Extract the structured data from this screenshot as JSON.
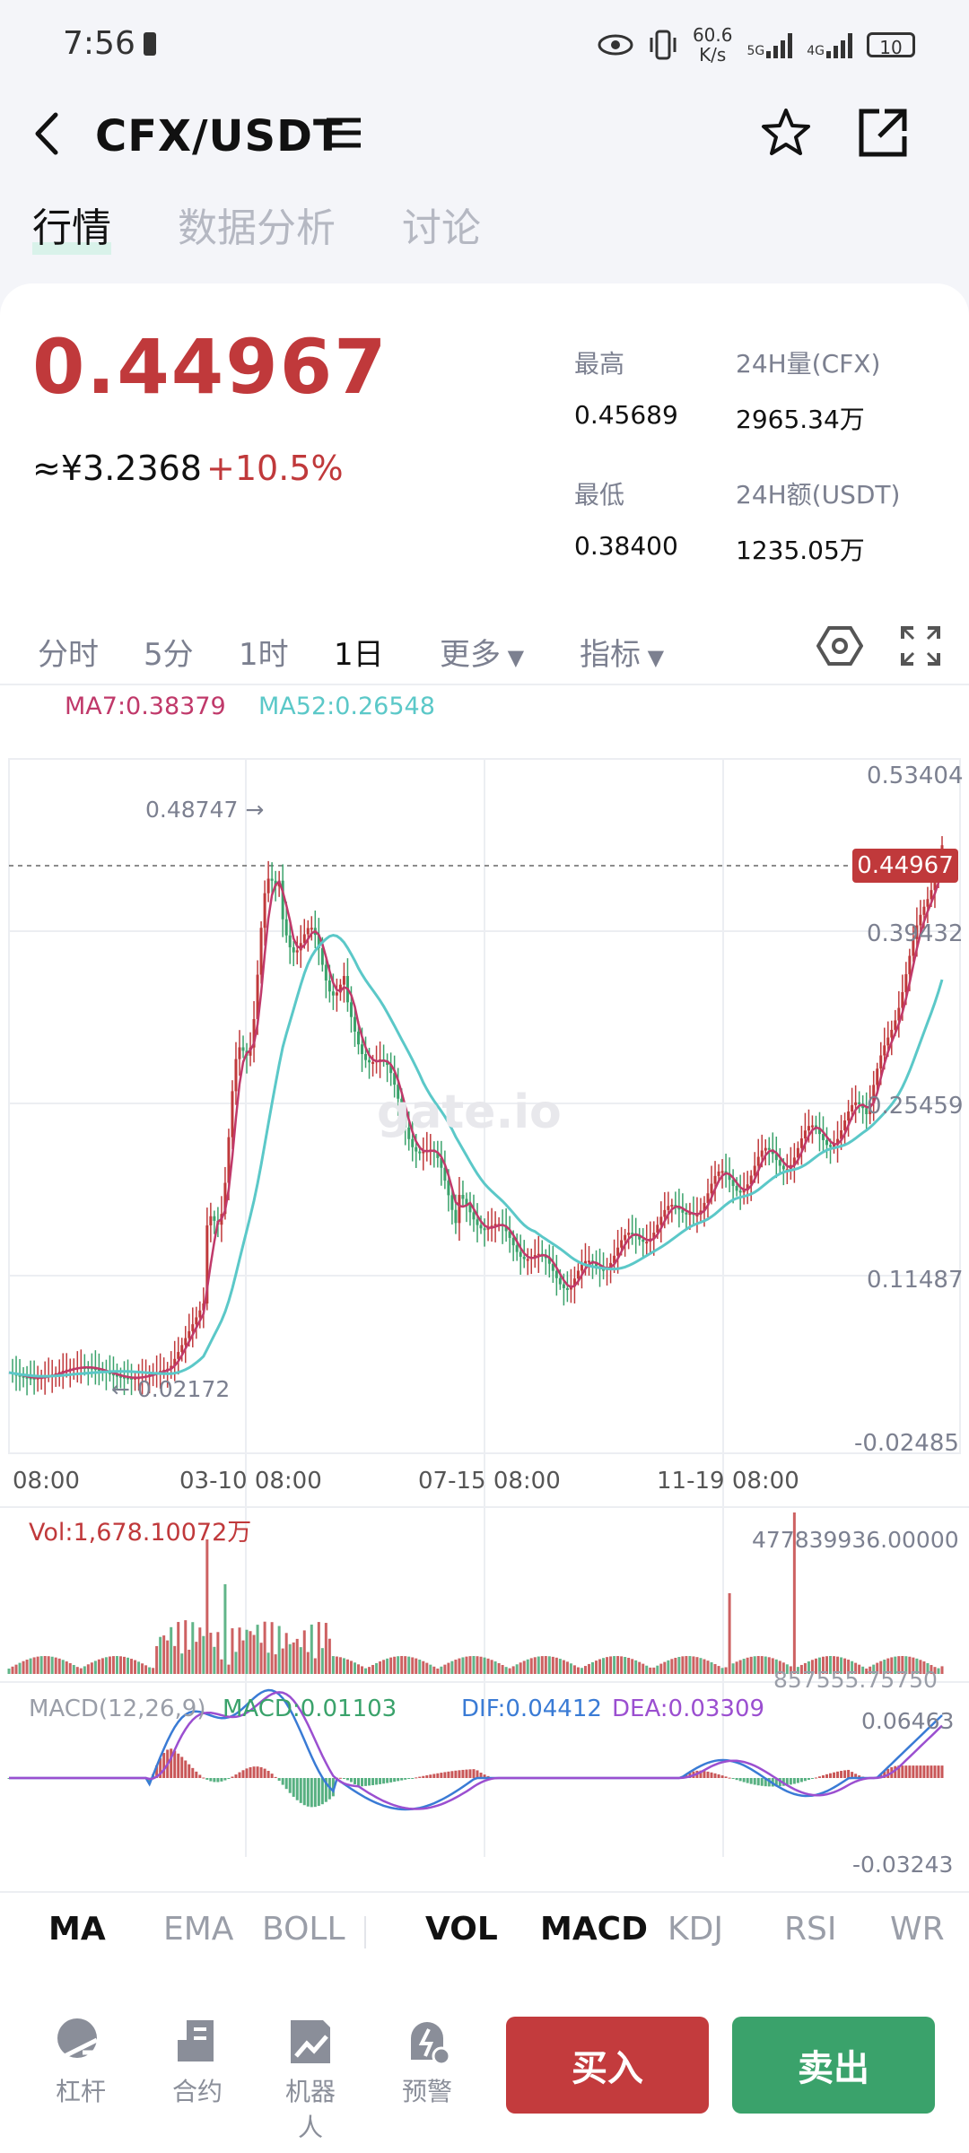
{
  "status_bar": {
    "time": "7:56",
    "net_speed_value": "60.6",
    "net_speed_unit": "K/s",
    "sig1_label": "5G",
    "sig2_label": "4G",
    "battery": "10"
  },
  "header": {
    "pair": "CFX/USDT",
    "tabs": [
      "行情",
      "数据分析",
      "讨论"
    ]
  },
  "ticker": {
    "price": "0.44967",
    "cny": "≈¥3.2368",
    "change": "+10.5%",
    "high_label": "最高",
    "high_value": "0.45689",
    "low_label": "最低",
    "low_value": "0.38400",
    "vol_label": "24H量(CFX)",
    "vol_value": "2965.34万",
    "amt_label": "24H额(USDT)",
    "amt_value": "1235.05万"
  },
  "periods": {
    "items": [
      "分时",
      "5分",
      "1时",
      "1日",
      "更多",
      "指标"
    ],
    "active": "1日"
  },
  "ma_legend": {
    "ma7": "MA7:0.38379",
    "ma52": "MA52:0.26548",
    "ma7_color": "#c0396a",
    "ma52_color": "#5bc8c8"
  },
  "main_chart": {
    "y_ticks": [
      "0.53404",
      "0.39432",
      "0.25459",
      "0.11487",
      "-0.02485"
    ],
    "x_ticks": [
      "08:00",
      "03-10 08:00",
      "07-15 08:00",
      "11-19 08:00"
    ],
    "current_price": "0.44967",
    "high_marker": "0.48747 →",
    "low_marker": "← 0.02172",
    "watermark": "gate.io"
  },
  "volume": {
    "label": "Vol:1,678.10072万",
    "max": "477839936.00000",
    "min": "857555.75750"
  },
  "macd": {
    "label": "MACD(12,26,9)",
    "macd": "MACD:0.01103",
    "dif": "DIF:0.04412",
    "dea": "DEA:0.03309",
    "top": "0.06463",
    "bottom": "-0.03243",
    "macd_color": "#3aa26b",
    "dif_color": "#3a7bd5",
    "dea_color": "#9b4fd0"
  },
  "indicator_tabs": {
    "items": [
      "MA",
      "EMA",
      "BOLL",
      "VOL",
      "MACD",
      "KDJ",
      "RSI",
      "WR"
    ],
    "active": [
      "MA",
      "VOL",
      "MACD"
    ]
  },
  "bottom_nav": {
    "items": [
      "杠杆",
      "合约",
      "机器人",
      "预警"
    ],
    "buy": "买入",
    "sell": "卖出"
  },
  "colors": {
    "up": "#c0393b",
    "down": "#3aa26b"
  }
}
